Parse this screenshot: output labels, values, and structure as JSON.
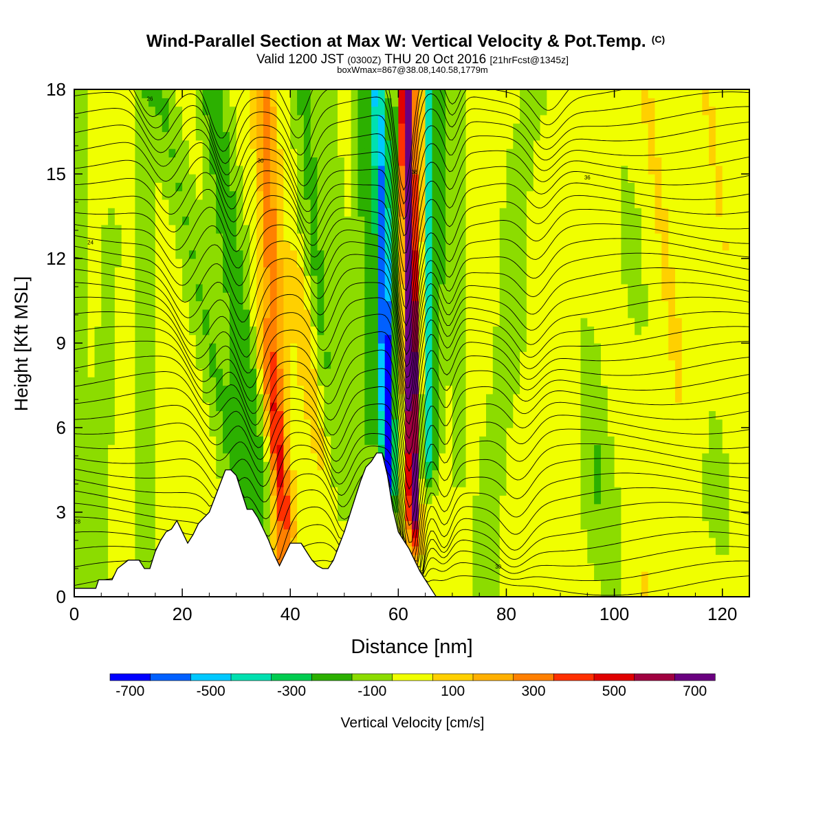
{
  "chart_data": {
    "type": "heatmap",
    "title": "Wind-Parallel Section at Max W: Vertical Velocity & Pot.Temp.",
    "copyright_mark": "(C)",
    "subtitle": {
      "prefix": "Valid 1200 JST",
      "utc": "(0300Z)",
      "date": "THU 20 Oct 2016",
      "forecast": "[21hrFcst@1345z]"
    },
    "subtitle2": "boxWmax=867@38.08,140.58,1779m",
    "xlabel": "Distance [nm]",
    "ylabel": "Height [Kft MSL]",
    "xlim": [
      0,
      125
    ],
    "ylim": [
      0,
      18
    ],
    "x_ticks": [
      "0",
      "20",
      "40",
      "60",
      "80",
      "100",
      "120"
    ],
    "y_ticks": [
      "0",
      "3",
      "6",
      "9",
      "12",
      "15",
      "18"
    ],
    "colorbar": {
      "label": "Vertical Velocity [cm/s]",
      "min": -800,
      "max": 800,
      "step": 100,
      "tick_labels": [
        "-700",
        "-500",
        "-300",
        "-100",
        "100",
        "300",
        "500",
        "700"
      ],
      "colors": [
        "#0000ff",
        "#0060ff",
        "#00c8ff",
        "#00e0b0",
        "#00cc50",
        "#2cb000",
        "#8cdc00",
        "#f0ff00",
        "#ffd000",
        "#ffb000",
        "#ff8000",
        "#ff3000",
        "#e00000",
        "#a00040",
        "#6a0080"
      ]
    },
    "terrain_kft": [
      [
        0,
        0.3
      ],
      [
        4,
        0.3
      ],
      [
        4.5,
        0.6
      ],
      [
        7,
        0.6
      ],
      [
        8,
        1.0
      ],
      [
        10,
        1.3
      ],
      [
        12,
        1.3
      ],
      [
        13,
        1.0
      ],
      [
        14,
        1.0
      ],
      [
        15,
        1.6
      ],
      [
        16,
        2.0
      ],
      [
        17,
        2.3
      ],
      [
        18,
        2.4
      ],
      [
        19,
        2.7
      ],
      [
        20,
        2.3
      ],
      [
        21,
        1.9
      ],
      [
        22,
        2.2
      ],
      [
        23,
        2.6
      ],
      [
        24,
        2.8
      ],
      [
        25,
        3.0
      ],
      [
        26,
        3.5
      ],
      [
        27,
        4.0
      ],
      [
        28,
        4.5
      ],
      [
        29,
        4.5
      ],
      [
        30,
        4.3
      ],
      [
        31,
        3.7
      ],
      [
        32,
        3.1
      ],
      [
        33,
        3.1
      ],
      [
        34,
        2.8
      ],
      [
        35,
        2.4
      ],
      [
        36,
        2.0
      ],
      [
        37,
        1.5
      ],
      [
        38,
        1.1
      ],
      [
        39,
        1.5
      ],
      [
        40,
        1.9
      ],
      [
        41,
        1.9
      ],
      [
        42,
        1.9
      ],
      [
        43,
        1.6
      ],
      [
        44,
        1.3
      ],
      [
        45,
        1.1
      ],
      [
        46,
        1.0
      ],
      [
        47,
        1.0
      ],
      [
        48,
        1.3
      ],
      [
        49,
        1.8
      ],
      [
        50,
        2.3
      ],
      [
        51,
        2.9
      ],
      [
        52,
        3.5
      ],
      [
        53,
        4.1
      ],
      [
        54,
        4.6
      ],
      [
        55,
        4.8
      ],
      [
        56,
        5.1
      ],
      [
        57,
        5.1
      ],
      [
        58,
        4.3
      ],
      [
        59,
        3.1
      ],
      [
        60,
        2.3
      ],
      [
        61,
        2.0
      ],
      [
        62,
        1.7
      ],
      [
        63,
        1.3
      ],
      [
        64,
        0.9
      ],
      [
        65,
        0.6
      ],
      [
        66,
        0.3
      ],
      [
        67,
        0.0
      ],
      [
        125,
        0.0
      ]
    ],
    "theta_contours_K": [
      {
        "label": "28",
        "x": 0.6,
        "y": 2.6
      },
      {
        "label": "24",
        "x": 3.0,
        "y": 12.5
      },
      {
        "label": "26",
        "x": 14.0,
        "y": 17.6
      },
      {
        "label": "30",
        "x": 34.5,
        "y": 15.4
      },
      {
        "label": "36",
        "x": 63.0,
        "y": 15.0
      },
      {
        "label": "36",
        "x": 95.0,
        "y": 14.8
      },
      {
        "label": "30",
        "x": 78.5,
        "y": 1.0
      }
    ]
  }
}
